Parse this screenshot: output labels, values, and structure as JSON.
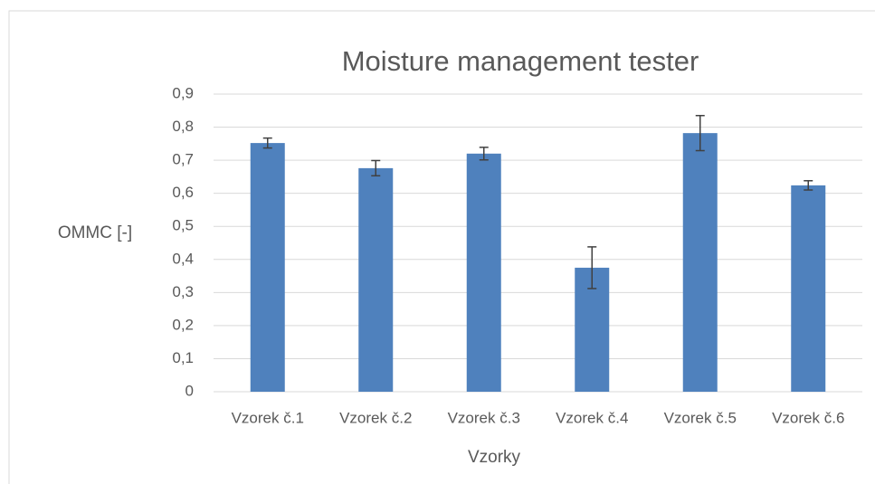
{
  "chart_data": {
    "type": "bar",
    "title": "Moisture management tester",
    "x_label": "Vzorky",
    "y_label": "OMMC [-]",
    "categories": [
      "Vzorek č.1",
      "Vzorek č.2",
      "Vzorek č.3",
      "Vzorek č.4",
      "Vzorek č.5",
      "Vzorek č.6"
    ],
    "values": [
      0.752,
      0.676,
      0.72,
      0.375,
      0.782,
      0.624
    ],
    "errors": [
      0.015,
      0.023,
      0.019,
      0.063,
      0.053,
      0.014
    ],
    "color": "#4f81bd",
    "ylim": [
      0,
      0.9
    ],
    "yticks": [
      0,
      {
        "value": 0.1,
        "label": "0,1"
      },
      {
        "value": 0.2,
        "label": "0,2"
      },
      {
        "value": 0.3,
        "label": "0,3"
      },
      {
        "value": 0.4,
        "label": "0,4"
      },
      {
        "value": 0.5,
        "label": "0,5"
      },
      {
        "value": 0.6,
        "label": "0,6"
      },
      {
        "value": 0.7,
        "label": "0,7"
      },
      {
        "value": 0.8,
        "label": "0,8"
      },
      {
        "value": 0.9,
        "label": "0,9"
      }
    ],
    "grid": true
  }
}
